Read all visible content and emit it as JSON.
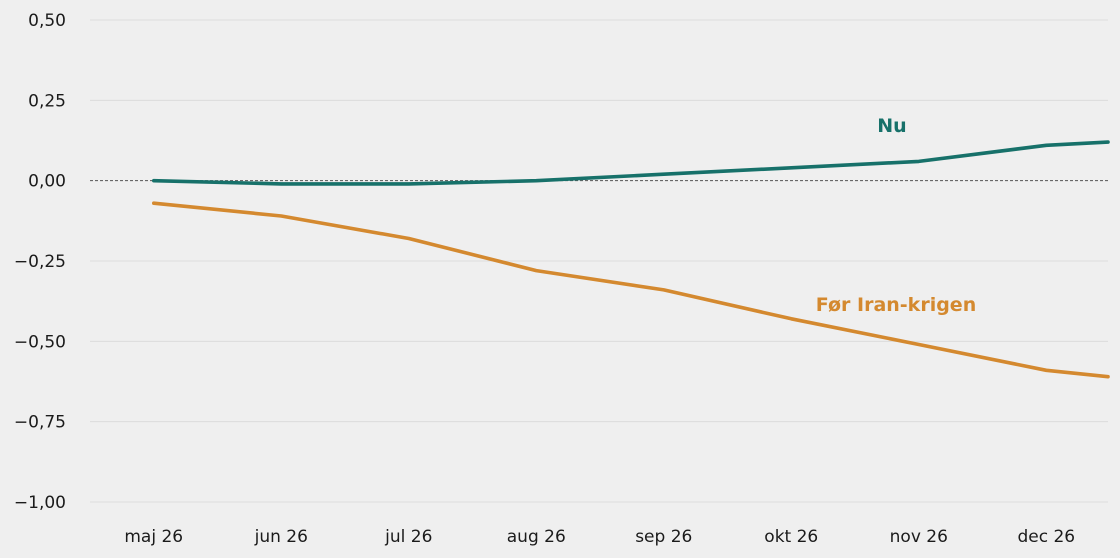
{
  "chart_data": {
    "type": "line",
    "x": [
      "2026-05-01",
      "2026-06-01",
      "2026-07-01",
      "2026-08-01",
      "2026-09-01",
      "2026-10-01",
      "2026-11-01",
      "2026-12-01",
      "2026-12-16"
    ],
    "xlim": [
      "2026-04-16",
      "2026-12-16"
    ],
    "xticks": [
      {
        "x": "2026-05-01",
        "label": "maj 26"
      },
      {
        "x": "2026-06-01",
        "label": "jun 26"
      },
      {
        "x": "2026-07-01",
        "label": "jul 26"
      },
      {
        "x": "2026-08-01",
        "label": "aug 26"
      },
      {
        "x": "2026-09-01",
        "label": "sep 26"
      },
      {
        "x": "2026-10-01",
        "label": "okt 26"
      },
      {
        "x": "2026-11-01",
        "label": "nov 26"
      },
      {
        "x": "2026-12-01",
        "label": "dec 26"
      }
    ],
    "ylim": [
      -1.0,
      0.5
    ],
    "yticks": [
      {
        "value": 0.5,
        "label": "0,50"
      },
      {
        "value": 0.25,
        "label": "0,25"
      },
      {
        "value": 0.0,
        "label": "0,00"
      },
      {
        "value": -0.25,
        "label": "−0,25"
      },
      {
        "value": -0.5,
        "label": "−0,50"
      },
      {
        "value": -0.75,
        "label": "−0,75"
      },
      {
        "value": -1.0,
        "label": "−1,00"
      }
    ],
    "grid": true,
    "zero_line_dashed": true,
    "series": [
      {
        "name": "Nu",
        "color": "#17716a",
        "values": [
          0.0,
          -0.01,
          -0.01,
          0.0,
          0.02,
          0.04,
          0.06,
          0.11,
          0.12
        ]
      },
      {
        "name": "Før Iran-krigen",
        "color": "#d4892f",
        "values": [
          -0.07,
          -0.11,
          -0.18,
          -0.28,
          -0.34,
          -0.43,
          -0.51,
          -0.59,
          -0.61
        ]
      }
    ]
  }
}
